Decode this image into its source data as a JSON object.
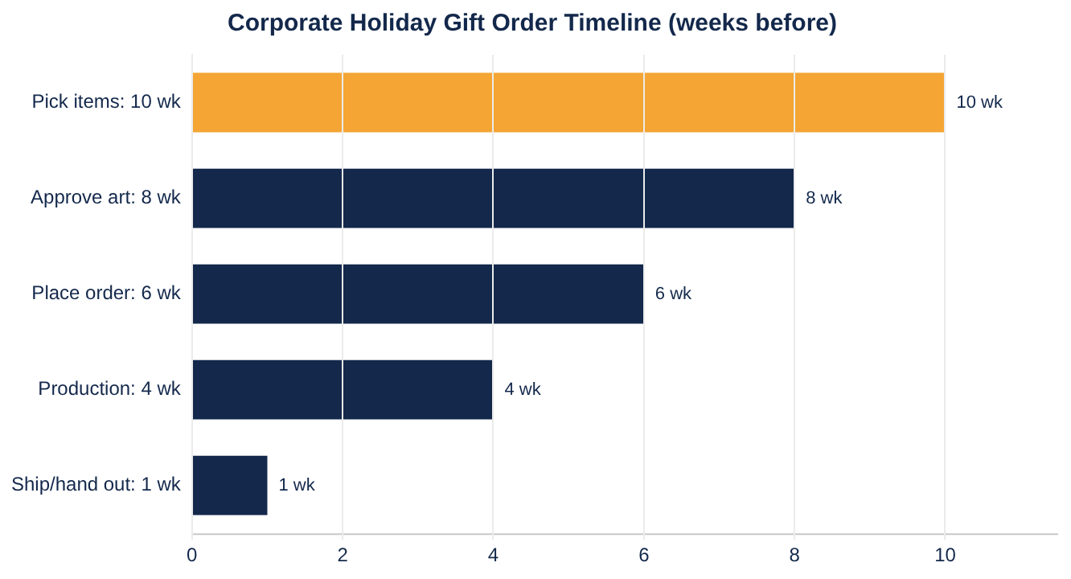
{
  "chart_data": {
    "type": "bar",
    "orientation": "horizontal",
    "title": "Corporate Holiday Gift Order Timeline (weeks before)",
    "categories": [
      "Pick items: 10 wk",
      "Approve art: 8 wk",
      "Place order: 6 wk",
      "Production: 4 wk",
      "Ship/hand out: 1 wk"
    ],
    "values": [
      10,
      8,
      6,
      4,
      1
    ],
    "colors": [
      "#f4a534",
      "#13284b",
      "#13284b",
      "#13284b",
      "#13284b"
    ],
    "value_labels": [
      "10 wk",
      "8 wk",
      "6 wk",
      "4 wk",
      "1 wk"
    ],
    "xlim": [
      0,
      11.5
    ],
    "xticks": [
      0,
      2,
      4,
      6,
      8,
      10
    ],
    "grid": "x",
    "legend": false
  }
}
